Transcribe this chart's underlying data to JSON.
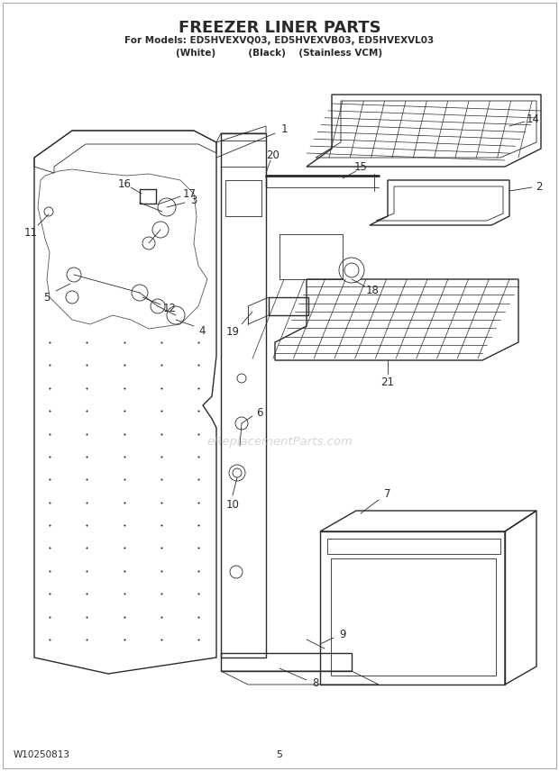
{
  "title": "FREEZER LINER PARTS",
  "subtitle1": "For Models: ED5HVEXVQ03, ED5HVEXVB03, ED5HVEXVL03",
  "subtitle2": "(White)          (Black)    (Stainless VCM)",
  "footer_left": "W10250813",
  "footer_center": "5",
  "bg_color": "#ffffff",
  "line_color": "#2a2a2a",
  "watermark": "eReplacementParts.com"
}
